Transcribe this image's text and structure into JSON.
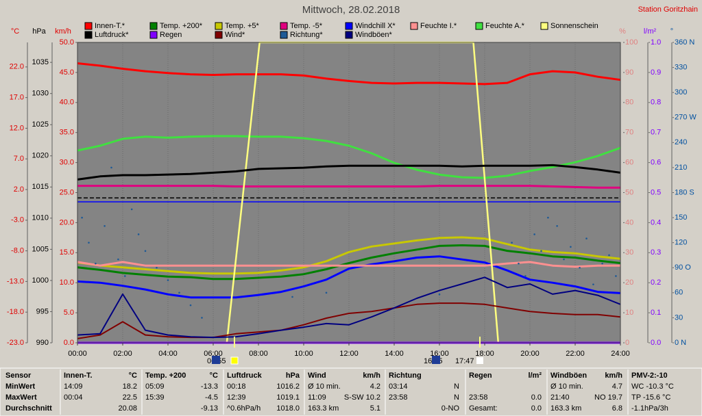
{
  "chart_data": {
    "type": "line",
    "title": "Mittwoch, 28.02.2018",
    "station": "Station Goritzhain",
    "grid": true,
    "xlim": [
      0,
      24
    ],
    "xticks": [
      {
        "value": 0,
        "label": "00:00"
      },
      {
        "value": 2,
        "label": "02:00"
      },
      {
        "value": 4,
        "label": "04:00"
      },
      {
        "value": 6,
        "label": "06:00"
      },
      {
        "value": 8,
        "label": "08:00"
      },
      {
        "value": 10,
        "label": "10:00"
      },
      {
        "value": 12,
        "label": "12:00"
      },
      {
        "value": 14,
        "label": "14:00"
      },
      {
        "value": 16,
        "label": "16:00"
      },
      {
        "value": 18,
        "label": "18:00"
      },
      {
        "value": 20,
        "label": "20:00"
      },
      {
        "value": 22,
        "label": "22:00"
      },
      {
        "value": 24,
        "label": "24:00"
      }
    ],
    "axes": [
      {
        "label": "°C",
        "color": "#e00000",
        "side": "left",
        "lim": [
          -23,
          26
        ],
        "ticks": [
          {
            "value": -23,
            "label": "-23.0"
          },
          {
            "value": -18,
            "label": "-18.0"
          },
          {
            "value": -13,
            "label": "-13.0"
          },
          {
            "value": -8,
            "label": "-8.0"
          },
          {
            "value": -3,
            "label": "-3.0"
          },
          {
            "value": 2,
            "label": "2.0"
          },
          {
            "value": 7,
            "label": "7.0"
          },
          {
            "value": 12,
            "label": "12.0"
          },
          {
            "value": 17,
            "label": "17.0"
          },
          {
            "value": 22,
            "label": "22.0"
          }
        ]
      },
      {
        "label": "hPa",
        "color": "#000000",
        "side": "left",
        "lim": [
          990,
          1038.2
        ],
        "ticks": [
          990,
          995,
          1000,
          1005,
          1010,
          1015,
          1020,
          1025,
          1030,
          1035
        ]
      },
      {
        "label": "km/h",
        "color": "#e00000",
        "side": "left",
        "lim": [
          0,
          50
        ],
        "ticks": [
          {
            "value": 0,
            "label": "0.0"
          },
          {
            "value": 5,
            "label": "5.0"
          },
          {
            "value": 10,
            "label": "10.0"
          },
          {
            "value": 15,
            "label": "15.0"
          },
          {
            "value": 20,
            "label": "20.0"
          },
          {
            "value": 25,
            "label": "25.0"
          },
          {
            "value": 30,
            "label": "30.0"
          },
          {
            "value": 35,
            "label": "35.0"
          },
          {
            "value": 40,
            "label": "40.0"
          },
          {
            "value": 45,
            "label": "45.0"
          },
          {
            "value": 50,
            "label": "50.0"
          }
        ]
      },
      {
        "label": "%",
        "color": "#e08080",
        "side": "right",
        "lim": [
          0,
          100
        ],
        "ticks": [
          0,
          10,
          20,
          30,
          40,
          50,
          60,
          70,
          80,
          90,
          100
        ]
      },
      {
        "label": "l/m²",
        "color": "#8000ff",
        "side": "right",
        "lim": [
          0,
          1
        ],
        "ticks": [
          {
            "value": 0,
            "label": "0.0"
          },
          {
            "value": 0.1,
            "label": "0.1"
          },
          {
            "value": 0.2,
            "label": "0.2"
          },
          {
            "value": 0.3,
            "label": "0.3"
          },
          {
            "value": 0.4,
            "label": "0.4"
          },
          {
            "value": 0.5,
            "label": "0.5"
          },
          {
            "value": 0.6,
            "label": "0.6"
          },
          {
            "value": 0.7,
            "label": "0.7"
          },
          {
            "value": 0.8,
            "label": "0.8"
          },
          {
            "value": 0.9,
            "label": "0.9"
          },
          {
            "value": 1,
            "label": "1.0"
          }
        ]
      },
      {
        "label": "°",
        "color": "#0050a0",
        "side": "right",
        "lim": [
          0,
          360
        ],
        "ticks": [
          {
            "value": 0,
            "label": "0 N"
          },
          30,
          60,
          {
            "value": 90,
            "label": "90 O"
          },
          120,
          150,
          {
            "value": 180,
            "label": "180 S"
          },
          210,
          240,
          {
            "value": 270,
            "label": "270 W"
          },
          300,
          330,
          {
            "value": 360,
            "label": "360 N"
          }
        ]
      }
    ],
    "reference_lines": [
      {
        "axis": 0,
        "value": 0,
        "color": "#0000ff"
      },
      {
        "axis": 1,
        "value": 1013.25,
        "color": "#000000"
      }
    ],
    "x": [
      0,
      1,
      2,
      3,
      4,
      5,
      6,
      7,
      8,
      9,
      10,
      11,
      12,
      13,
      14,
      15,
      16,
      17,
      18,
      19,
      20,
      21,
      22,
      23,
      24
    ],
    "series": [
      {
        "name": "Innen-T.*",
        "color": "#ff0000",
        "axis": 0,
        "values": [
          22.6,
          22.2,
          21.7,
          21.3,
          21.0,
          20.8,
          20.7,
          20.8,
          20.8,
          20.8,
          20.6,
          20.1,
          19.7,
          19.4,
          19.3,
          19.4,
          19.4,
          19.3,
          19.2,
          19.4,
          20.8,
          21.3,
          21.1,
          20.4,
          19.9
        ]
      },
      {
        "name": "Temp. +200*",
        "color": "#008000",
        "axis": 0,
        "values": [
          -10.7,
          -11.1,
          -11.6,
          -11.9,
          -12.2,
          -12.3,
          -12.6,
          -12.6,
          -12.4,
          -12.2,
          -11.8,
          -11.0,
          -10.0,
          -9.1,
          -8.4,
          -7.8,
          -7.2,
          -7.1,
          -7.2,
          -8.0,
          -8.4,
          -8.9,
          -9.1,
          -9.6,
          -10.0
        ]
      },
      {
        "name": "Temp. +5*",
        "color": "#c8c800",
        "axis": 0,
        "values": [
          -9.9,
          -10.4,
          -10.7,
          -11.0,
          -11.3,
          -11.6,
          -11.7,
          -11.7,
          -11.6,
          -11.2,
          -10.7,
          -9.7,
          -8.2,
          -7.3,
          -6.8,
          -6.3,
          -5.9,
          -5.8,
          -6.0,
          -6.9,
          -7.8,
          -8.2,
          -8.4,
          -8.9,
          -9.3
        ]
      },
      {
        "name": "Temp. -5*",
        "color": "#e0007f",
        "axis": 0,
        "values": [
          2.6,
          2.6,
          2.6,
          2.6,
          2.6,
          2.6,
          2.6,
          2.5,
          2.5,
          2.5,
          2.5,
          2.5,
          2.5,
          2.5,
          2.5,
          2.5,
          2.6,
          2.6,
          2.6,
          2.6,
          2.6,
          2.5,
          2.4,
          2.3,
          2.3
        ]
      },
      {
        "name": "Windchill X*",
        "color": "#0000ff",
        "axis": 0,
        "values": [
          -13.0,
          -13.2,
          -13.7,
          -14.3,
          -15.1,
          -15.6,
          -15.6,
          -15.6,
          -15.2,
          -14.7,
          -13.8,
          -12.7,
          -10.9,
          -10.2,
          -9.7,
          -9.1,
          -8.9,
          -9.4,
          -9.9,
          -11.2,
          -12.7,
          -13.2,
          -13.8,
          -14.7,
          -14.9
        ]
      },
      {
        "name": "Feuchte I.*",
        "color": "#ff9090",
        "axis": 3,
        "values": [
          26.9,
          25.7,
          26.9,
          25.7,
          25.7,
          25.7,
          25.7,
          25.7,
          25.7,
          25.7,
          25.7,
          25.7,
          25.7,
          25.7,
          25.7,
          25.7,
          25.7,
          25.7,
          25.7,
          26.4,
          26.9,
          25.7,
          25.3,
          25.7,
          25.7
        ]
      },
      {
        "name": "Feuchte A.*",
        "color": "#40e040",
        "axis": 3,
        "values": [
          64.0,
          65.6,
          67.9,
          68.6,
          68.3,
          68.6,
          68.8,
          68.8,
          68.6,
          68.6,
          68.1,
          67.2,
          65.6,
          63.1,
          59.9,
          57.6,
          56.0,
          55.1,
          54.9,
          55.6,
          57.2,
          58.5,
          60.1,
          62.2,
          64.9
        ]
      },
      {
        "name": "Sonnenschein",
        "color": "#ffff80",
        "axis": 3,
        "x": [
          0,
          6.6,
          8.05,
          17.5,
          18.6,
          24
        ],
        "values": [
          0,
          0,
          100,
          100,
          0,
          0
        ]
      },
      {
        "name": "Luftdruck*",
        "color": "#000000",
        "axis": 1,
        "values": [
          1016.2,
          1016.7,
          1016.9,
          1016.9,
          1017.0,
          1017.1,
          1017.3,
          1017.5,
          1017.9,
          1018.0,
          1018.1,
          1018.3,
          1018.4,
          1018.4,
          1018.4,
          1018.4,
          1018.4,
          1018.3,
          1018.4,
          1018.4,
          1018.4,
          1018.5,
          1018.2,
          1017.8,
          1017.3
        ]
      },
      {
        "name": "Regen",
        "color": "#8000ff",
        "axis": 4,
        "values": [
          0,
          0,
          0,
          0,
          0,
          0,
          0,
          0,
          0,
          0,
          0,
          0,
          0,
          0,
          0,
          0,
          0,
          0,
          0,
          0,
          0,
          0,
          0,
          0,
          0
        ]
      },
      {
        "name": "Wind*",
        "color": "#800000",
        "axis": 2,
        "values": [
          0.7,
          1.3,
          3.5,
          1.3,
          1.0,
          0.9,
          0.9,
          1.5,
          1.8,
          2.1,
          3.0,
          4.1,
          4.9,
          5.2,
          5.8,
          6.4,
          6.6,
          6.6,
          6.4,
          5.8,
          5.2,
          4.9,
          4.7,
          4.7,
          4.3
        ]
      },
      {
        "name": "Richtung*",
        "color": "#1e5a96",
        "axis": 5,
        "marker": "dot",
        "x": [
          0.2,
          0.5,
          0.8,
          1.2,
          1.5,
          1.8,
          2.1,
          2.4,
          2.7,
          3.0,
          3.5,
          4.0,
          4.5,
          5.0,
          5.5,
          9.5,
          11,
          16,
          19.2,
          19.5,
          19.8,
          20.2,
          20.5,
          20.8,
          21.2,
          21.5,
          21.8,
          22.2,
          22.5,
          22.8,
          23.2,
          23.5,
          23.8
        ],
        "values": [
          150,
          120,
          95,
          140,
          210,
          100,
          80,
          160,
          130,
          110,
          90,
          75,
          60,
          45,
          30,
          55,
          60,
          58,
          120,
          95,
          80,
          130,
          110,
          150,
          140,
          100,
          115,
          90,
          125,
          70,
          95,
          105,
          80
        ]
      },
      {
        "name": "Windböen*",
        "color": "#000080",
        "axis": 2,
        "values": [
          1.3,
          1.5,
          8.1,
          2.1,
          1.3,
          1.0,
          0.9,
          1.0,
          1.5,
          2.1,
          2.6,
          3.2,
          3.0,
          4.3,
          5.8,
          7.4,
          8.7,
          9.8,
          10.9,
          9.2,
          9.8,
          8.1,
          8.7,
          7.9,
          6.4
        ]
      }
    ],
    "events": [
      "06:55",
      "16:15",
      "17:47"
    ]
  },
  "table": {
    "row_labels": [
      "Sensor",
      "MinWert",
      "MaxWert",
      "Durchschnitt"
    ],
    "columns": [
      {
        "header": "Innen-T.",
        "unit": "°C",
        "rows": [
          [
            "14:09",
            "18.2"
          ],
          [
            "00:04",
            "22.5"
          ],
          [
            null,
            "20.08"
          ]
        ]
      },
      {
        "header": "Temp. +200",
        "unit": "°C",
        "rows": [
          [
            "05:09",
            "-13.3"
          ],
          [
            "15:39",
            "-4.5"
          ],
          [
            null,
            "-9.13"
          ]
        ]
      },
      {
        "header": "Luftdruck",
        "unit": "hPa",
        "rows": [
          [
            "00:18",
            "1016.2"
          ],
          [
            "12:39",
            "1019.1"
          ],
          [
            "^0.6hPa/h",
            "1018.0"
          ]
        ]
      },
      {
        "header": "Wind",
        "unit": "km/h",
        "rows": [
          [
            "Ø 10 min.",
            "4.2"
          ],
          [
            "11:09",
            "S-SW 10.2"
          ],
          [
            "163.3 km",
            "5.1"
          ]
        ]
      },
      {
        "header": "Richtung",
        "unit": null,
        "rows": [
          [
            "03:14",
            "N"
          ],
          [
            "23:58",
            "N"
          ],
          [
            null,
            "0-NO"
          ]
        ]
      },
      {
        "header": "Regen",
        "unit": "l/m²",
        "rows": [
          [
            null,
            null
          ],
          [
            "23:58",
            "0.0"
          ],
          [
            "Gesamt:",
            "0.0"
          ]
        ]
      },
      {
        "header": "Windböen",
        "unit": "km/h",
        "rows": [
          [
            "Ø 10 min.",
            "4.7"
          ],
          [
            "21:40",
            "NO 19.7"
          ],
          [
            "163.3 km",
            "6.8"
          ]
        ]
      },
      {
        "header": "PMV-2:-10",
        "unit": null,
        "rows": [
          [
            "WC -10.3 °C",
            null
          ],
          [
            "TP -15.6 °C",
            null
          ],
          [
            "-1.1hPa/3h",
            null
          ]
        ]
      }
    ]
  }
}
